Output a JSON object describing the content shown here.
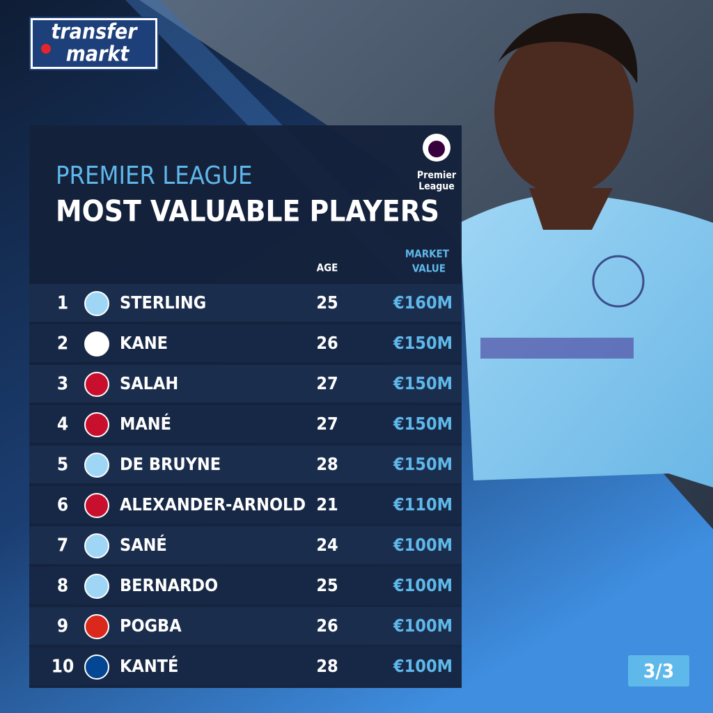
{
  "logo": {
    "line1": "transfer",
    "line2": "markt"
  },
  "badge": {
    "line1": "Premier",
    "line2": "League"
  },
  "header": {
    "subtitle": "PREMIER LEAGUE",
    "title": "MOST VALUABLE PLAYERS"
  },
  "table": {
    "columns": {
      "age": "AGE",
      "value_line1": "MARKET",
      "value_line2": "VALUE"
    },
    "rows": [
      [
        1,
        "STERLING",
        25,
        "€160M"
      ],
      [
        2,
        "KANE",
        26,
        "€150M"
      ],
      [
        3,
        "SALAH",
        27,
        "€150M"
      ],
      [
        4,
        "MANÉ",
        27,
        "€150M"
      ],
      [
        5,
        "DE BRUYNE",
        28,
        "€150M"
      ],
      [
        6,
        "ALEXANDER-ARNOLD",
        21,
        "€110M"
      ],
      [
        7,
        "SANÉ",
        24,
        "€100M"
      ],
      [
        8,
        "BERNARDO",
        25,
        "€100M"
      ],
      [
        9,
        "POGBA",
        26,
        "€100M"
      ],
      [
        10,
        "KANTÉ",
        28,
        "€100M"
      ]
    ]
  },
  "pager": "3/3"
}
